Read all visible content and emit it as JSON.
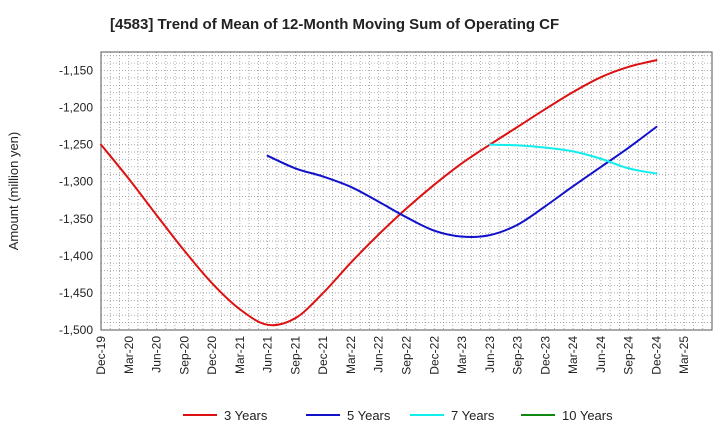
{
  "chart_data": {
    "type": "line",
    "title": "[4583]  Trend of Mean of 12-Month Moving Sum of Operating CF",
    "xlabel": "",
    "ylabel": "Amount (million yen)",
    "ylim": [
      -1500,
      -1125
    ],
    "yticks": [
      -1500,
      -1450,
      -1400,
      -1350,
      -1300,
      -1250,
      -1200,
      -1150
    ],
    "ytick_labels": [
      "-1,500",
      "-1,450",
      "-1,400",
      "-1,350",
      "-1,300",
      "-1,250",
      "-1,200",
      "-1,150"
    ],
    "categories": [
      "Dec-19",
      "Mar-20",
      "Jun-20",
      "Sep-20",
      "Dec-20",
      "Mar-21",
      "Jun-21",
      "Sep-21",
      "Dec-21",
      "Mar-22",
      "Jun-22",
      "Sep-22",
      "Dec-22",
      "Mar-23",
      "Jun-23",
      "Sep-23",
      "Dec-23",
      "Mar-24",
      "Jun-24",
      "Sep-24",
      "Dec-24",
      "Mar-25"
    ],
    "grid": true,
    "legend_position": "bottom",
    "series": [
      {
        "name": "3 Years",
        "color": "#dd1111",
        "values": [
          -1250,
          -1296,
          -1345,
          -1393,
          -1437,
          -1472,
          -1493,
          -1484,
          -1450,
          -1409,
          -1371,
          -1336,
          -1304,
          -1275,
          -1250,
          -1226,
          -1202,
          -1179,
          -1159,
          -1145,
          -1136,
          null
        ]
      },
      {
        "name": "5 Years",
        "color": "#1111cc",
        "values": [
          null,
          null,
          null,
          null,
          null,
          null,
          -1265,
          -1282,
          -1293,
          -1307,
          -1327,
          -1348,
          -1366,
          -1374,
          -1372,
          -1358,
          -1333,
          -1306,
          -1280,
          -1254,
          -1226,
          null
        ]
      },
      {
        "name": "7 Years",
        "color": "#11eeee",
        "values": [
          null,
          null,
          null,
          null,
          null,
          null,
          null,
          null,
          null,
          null,
          null,
          null,
          null,
          null,
          -1250,
          -1251,
          -1254,
          -1259,
          -1269,
          -1282,
          -1289,
          null
        ]
      },
      {
        "name": "10 Years",
        "color": "#118811",
        "values": [
          null,
          null,
          null,
          null,
          null,
          null,
          null,
          null,
          null,
          null,
          null,
          null,
          null,
          null,
          null,
          null,
          null,
          null,
          null,
          null,
          null,
          null
        ]
      }
    ]
  }
}
